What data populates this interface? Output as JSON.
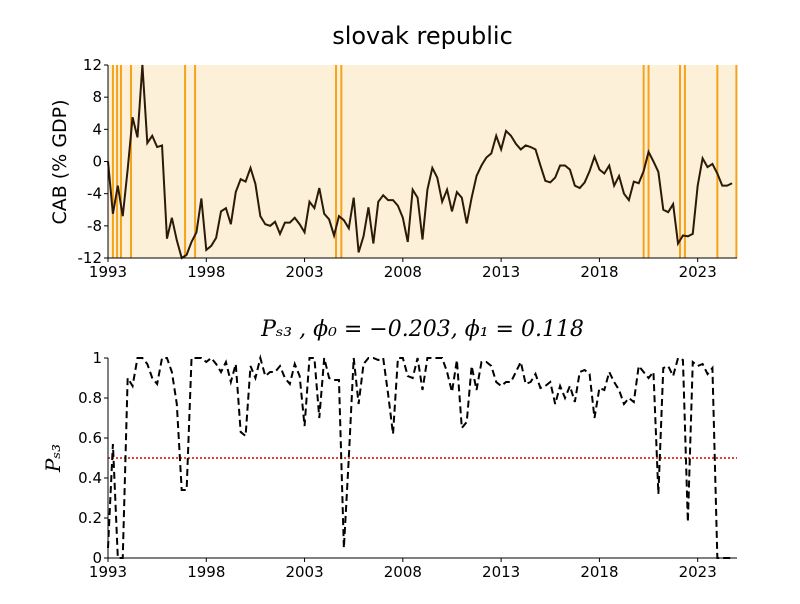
{
  "chart_data": [
    {
      "type": "line",
      "title": "slovak republic",
      "y_label": "CAB (% GDP)",
      "color": "#2b1a08",
      "background": "#fdf0d8",
      "switch_lines": [
        1993.25,
        1993.46,
        1993.66,
        1994.17,
        1996.92,
        1997.43,
        2004.6,
        2004.87,
        2020.25,
        2020.5,
        2022.1,
        2022.35,
        2024.0,
        2024.97
      ],
      "switch_color": "#f5a31a",
      "xlim": [
        1993,
        2025
      ],
      "xticks": [
        1993,
        1998,
        2003,
        2008,
        2013,
        2018,
        2023
      ],
      "ylim": [
        -12,
        12
      ],
      "yticks": [
        -12,
        -8,
        -4,
        0,
        4,
        8,
        12
      ],
      "x": [
        1993,
        1993.25,
        1993.5,
        1993.75,
        1994,
        1994.25,
        1994.5,
        1994.75,
        1995,
        1995.25,
        1995.5,
        1995.75,
        1996,
        1996.25,
        1996.5,
        1996.75,
        1997,
        1997.25,
        1997.5,
        1997.75,
        1998,
        1998.25,
        1998.5,
        1998.75,
        1999,
        1999.25,
        1999.5,
        1999.75,
        2000,
        2000.25,
        2000.5,
        2000.75,
        2001,
        2001.25,
        2001.5,
        2001.75,
        2002,
        2002.25,
        2002.5,
        2002.75,
        2003,
        2003.25,
        2003.5,
        2003.75,
        2004,
        2004.25,
        2004.5,
        2004.75,
        2005,
        2005.25,
        2005.5,
        2005.75,
        2006,
        2006.25,
        2006.5,
        2006.75,
        2007,
        2007.25,
        2007.5,
        2007.75,
        2008,
        2008.25,
        2008.5,
        2008.75,
        2009,
        2009.25,
        2009.5,
        2009.75,
        2010,
        2010.25,
        2010.5,
        2010.75,
        2011,
        2011.25,
        2011.5,
        2011.75,
        2012,
        2012.25,
        2012.5,
        2012.75,
        2013,
        2013.25,
        2013.5,
        2013.75,
        2014,
        2014.25,
        2014.5,
        2014.75,
        2015,
        2015.25,
        2015.5,
        2015.75,
        2016,
        2016.25,
        2016.5,
        2016.75,
        2017,
        2017.25,
        2017.5,
        2017.75,
        2018,
        2018.25,
        2018.5,
        2018.75,
        2019,
        2019.25,
        2019.5,
        2019.75,
        2020,
        2020.25,
        2020.5,
        2020.75,
        2021,
        2021.25,
        2021.5,
        2021.75,
        2022,
        2022.25,
        2022.5,
        2022.75,
        2023,
        2023.25,
        2023.5,
        2023.75,
        2024,
        2024.25,
        2024.5,
        2024.75
      ],
      "values": [
        0,
        -6.5,
        -3,
        -6.8,
        -1,
        5.5,
        3,
        12,
        2.3,
        3.2,
        1.8,
        2,
        -9.6,
        -7,
        -9.8,
        -12,
        -11.6,
        -10,
        -8.8,
        -4.6,
        -11,
        -10.5,
        -9.5,
        -6.2,
        -5.8,
        -7.8,
        -3.8,
        -2.2,
        -2.5,
        -0.8,
        -2.8,
        -6.8,
        -7.8,
        -8,
        -7.5,
        -9,
        -7.6,
        -7.6,
        -7,
        -7.8,
        -8.8,
        -5,
        -5.8,
        -3.3,
        -6.5,
        -7.2,
        -9.2,
        -6.8,
        -7.3,
        -8.3,
        -4.5,
        -11.3,
        -9.3,
        -5.7,
        -10.2,
        -5,
        -4.2,
        -4.8,
        -4.8,
        -5.5,
        -7,
        -10,
        -3.5,
        -4.5,
        -9.7,
        -3.5,
        -0.8,
        -2,
        -5,
        -3.5,
        -6.2,
        -3.8,
        -4.5,
        -7.7,
        -4.5,
        -1.8,
        -0.5,
        0.5,
        1,
        3.2,
        1.5,
        3.8,
        3.2,
        2.2,
        1.5,
        2,
        1.8,
        1.5,
        -0.5,
        -2.4,
        -2.6,
        -2,
        -0.5,
        -0.5,
        -1,
        -3,
        -3.3,
        -2.6,
        -1.2,
        0.6,
        -1,
        -1.5,
        -0.5,
        -3,
        -1.8,
        -4,
        -4.8,
        -2.5,
        -2.7,
        -1.2,
        1.2,
        0,
        -1.3,
        -6,
        -6.3,
        -5.3,
        -10.2,
        -9.2,
        -9.3,
        -9,
        -3,
        0.4,
        -0.7,
        -0.3,
        -1.5,
        -3,
        -3,
        -2.7
      ]
    },
    {
      "type": "line",
      "title": "Pₛ₃ , ϕ₀ = −0.203, ϕ₁ = 0.118",
      "y_label": "Pₛ₃",
      "color": "#000000",
      "line_style": "dashed",
      "hline": 0.5,
      "hline_color": "#e00000",
      "xlim": [
        1993,
        2025
      ],
      "xticks": [
        1993,
        1998,
        2003,
        2008,
        2013,
        2018,
        2023
      ],
      "ylim": [
        0,
        1
      ],
      "yticks": [
        0,
        0.2,
        0.4,
        0.6,
        0.8,
        1
      ],
      "x": [
        1993,
        1993.25,
        1993.5,
        1993.75,
        1994,
        1994.25,
        1994.5,
        1994.75,
        1995,
        1995.25,
        1995.5,
        1995.75,
        1996,
        1996.25,
        1996.5,
        1996.75,
        1997,
        1997.25,
        1997.5,
        1997.75,
        1998,
        1998.25,
        1998.5,
        1998.75,
        1999,
        1999.25,
        1999.5,
        1999.75,
        2000,
        2000.25,
        2000.5,
        2000.75,
        2001,
        2001.25,
        2001.5,
        2001.75,
        2002,
        2002.25,
        2002.5,
        2002.75,
        2003,
        2003.25,
        2003.5,
        2003.75,
        2004,
        2004.25,
        2004.5,
        2004.75,
        2005,
        2005.25,
        2005.5,
        2005.75,
        2006,
        2006.25,
        2006.5,
        2006.75,
        2007,
        2007.25,
        2007.5,
        2007.75,
        2008,
        2008.25,
        2008.5,
        2008.75,
        2009,
        2009.25,
        2009.5,
        2009.75,
        2010,
        2010.25,
        2010.5,
        2010.75,
        2011,
        2011.25,
        2011.5,
        2011.75,
        2012,
        2012.25,
        2012.5,
        2012.75,
        2013,
        2013.25,
        2013.5,
        2013.75,
        2014,
        2014.25,
        2014.5,
        2014.75,
        2015,
        2015.25,
        2015.5,
        2015.75,
        2016,
        2016.25,
        2016.5,
        2016.75,
        2017,
        2017.25,
        2017.5,
        2017.75,
        2018,
        2018.25,
        2018.5,
        2018.75,
        2019,
        2019.25,
        2019.5,
        2019.75,
        2020,
        2020.25,
        2020.5,
        2020.75,
        2021,
        2021.25,
        2021.5,
        2021.75,
        2022,
        2022.25,
        2022.5,
        2022.75,
        2023,
        2023.25,
        2023.5,
        2023.75,
        2024,
        2024.25,
        2024.5,
        2024.75
      ],
      "values": [
        0.05,
        0.57,
        0,
        0,
        0.9,
        0.86,
        1,
        1,
        0.97,
        0.9,
        0.87,
        1,
        1,
        0.93,
        0.77,
        0.34,
        0.34,
        1,
        1,
        1,
        0.98,
        1,
        0.97,
        0.93,
        0.98,
        0.88,
        0.97,
        0.63,
        0.61,
        0.96,
        0.9,
        1,
        0.91,
        0.93,
        0.93,
        0.96,
        0.9,
        0.87,
        0.97,
        0.91,
        0.66,
        1,
        1,
        0.7,
        1,
        0.9,
        0.89,
        0.89,
        0.05,
        0.5,
        1,
        0.77,
        0.97,
        1,
        1,
        0.99,
        1,
        0.82,
        0.62,
        1,
        1,
        0.91,
        0.9,
        1,
        0.84,
        1,
        1,
        1,
        1,
        0.93,
        0.83,
        0.99,
        0.65,
        0.68,
        0.96,
        0.84,
        0.98,
        0.98,
        0.96,
        0.88,
        0.86,
        0.88,
        0.88,
        0.93,
        0.98,
        0.87,
        0.88,
        0.92,
        0.85,
        0.86,
        0.88,
        0.77,
        0.86,
        0.8,
        0.86,
        0.78,
        0.93,
        0.94,
        0.92,
        0.7,
        0.85,
        0.84,
        0.93,
        0.88,
        0.84,
        0.77,
        0.8,
        0.78,
        0.96,
        0.93,
        0.9,
        0.93,
        0.32,
        0.95,
        0.96,
        0.91,
        1,
        0.99,
        0.18,
        0.98,
        0.96,
        0.97,
        0.92,
        0.95,
        0,
        0,
        0,
        0
      ]
    }
  ]
}
